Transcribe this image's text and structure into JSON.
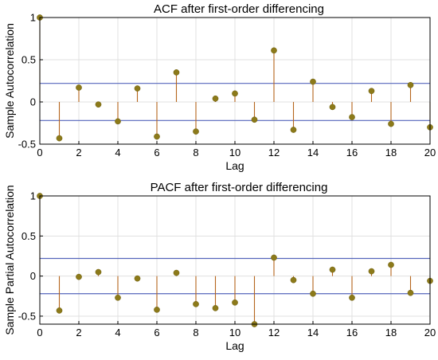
{
  "chart_data": [
    {
      "type": "stem",
      "title": "ACF after first-order differencing",
      "xlabel": "Lag",
      "ylabel": "Sample Autocorrelation",
      "xlim": [
        0,
        20
      ],
      "ylim": [
        -0.5,
        1
      ],
      "xticks": [
        "0",
        "2",
        "4",
        "6",
        "8",
        "10",
        "12",
        "14",
        "16",
        "18",
        "20"
      ],
      "yticks": [
        "-0.5",
        "0",
        "0.5",
        "1"
      ],
      "grid": true,
      "confidence_bounds": [
        0.22,
        -0.22
      ],
      "lags": [
        0,
        1,
        2,
        3,
        4,
        5,
        6,
        7,
        8,
        9,
        10,
        11,
        12,
        13,
        14,
        15,
        16,
        17,
        18,
        19,
        20
      ],
      "values": [
        1.0,
        -0.43,
        0.17,
        -0.03,
        -0.23,
        0.16,
        -0.41,
        0.35,
        -0.35,
        0.04,
        0.1,
        -0.21,
        0.61,
        -0.33,
        0.24,
        -0.06,
        -0.18,
        0.13,
        -0.26,
        0.2,
        -0.3
      ]
    },
    {
      "type": "stem",
      "title": "PACF after first-order differencing",
      "xlabel": "Lag",
      "ylabel": "Sample Partial Autocorrelation",
      "xlim": [
        0,
        20
      ],
      "ylim": [
        -0.6,
        1
      ],
      "xticks": [
        "0",
        "2",
        "4",
        "6",
        "8",
        "10",
        "12",
        "14",
        "16",
        "18",
        "20"
      ],
      "yticks": [
        "-0.5",
        "0",
        "0.5",
        "1"
      ],
      "grid": true,
      "confidence_bounds": [
        0.22,
        -0.22
      ],
      "lags": [
        0,
        1,
        2,
        3,
        4,
        5,
        6,
        7,
        8,
        9,
        10,
        11,
        12,
        13,
        14,
        15,
        16,
        17,
        18,
        19,
        20
      ],
      "values": [
        1.0,
        -0.43,
        -0.01,
        0.05,
        -0.27,
        -0.03,
        -0.42,
        0.04,
        -0.35,
        -0.4,
        -0.33,
        -0.6,
        0.23,
        -0.05,
        -0.22,
        0.08,
        -0.27,
        0.06,
        0.14,
        -0.21,
        -0.06
      ]
    }
  ],
  "colors": {
    "stem": "#b5651d",
    "marker": "#8c7a1a",
    "bound": "#5566bb",
    "grid": "#e0e0e0",
    "axes": "#000000"
  }
}
